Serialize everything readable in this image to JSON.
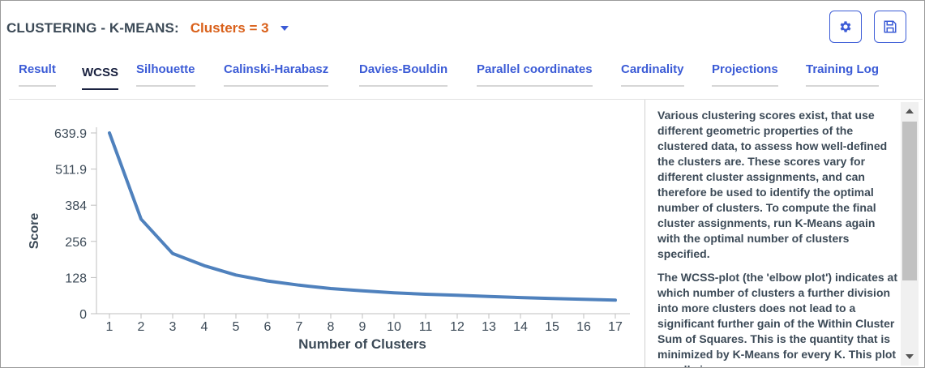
{
  "header": {
    "title": "CLUSTERING - K-MEANS:",
    "clusters_label": "Clusters = 3"
  },
  "toolbar": {
    "settings_icon": "gear-icon",
    "save_icon": "floppy-disk-icon"
  },
  "tabs": [
    {
      "label": "Result",
      "active": false
    },
    {
      "label": "WCSS",
      "active": true
    },
    {
      "label": "Silhouette",
      "active": false
    },
    {
      "label": "Calinski-Harabasz",
      "active": false
    },
    {
      "label": "Davies-Bouldin",
      "active": false
    },
    {
      "label": "Parallel coordinates",
      "active": false
    },
    {
      "label": "Cardinality",
      "active": false
    },
    {
      "label": "Projections",
      "active": false
    },
    {
      "label": "Training Log",
      "active": false
    }
  ],
  "description": {
    "paragraphs": [
      "Various clustering scores exist, that use different geometric properties of the clustered data, to assess how well-defined the clusters are. These scores vary for different cluster assignments, and can therefore be used to identify the optimal number of clusters. To compute the final cluster assignments, run K-Means again with the optimal number of clusters specified.",
      "The WCSS-plot (the 'elbow plot') indicates at which number of clusters a further division into more clusters does not lead to a significant further gain of the Within Cluster Sum of Squares. This is the quantity that is minimized by K-Means for every K. This plot usually is"
    ]
  },
  "colors": {
    "accent": "#3b5bd6",
    "cluster_orange": "#d9601a",
    "line": "#4f81bd",
    "text": "#3c4a57"
  },
  "chart_data": {
    "type": "line",
    "xlabel": "Number of Clusters",
    "ylabel": "Score",
    "x": [
      1,
      2,
      3,
      4,
      5,
      6,
      7,
      8,
      9,
      10,
      11,
      12,
      13,
      14,
      15,
      16,
      17
    ],
    "y_ticks": [
      "0",
      "128",
      "256",
      "384",
      "511.9",
      "639.9"
    ],
    "y_tick_values": [
      0,
      128,
      256,
      384,
      511.9,
      639.9
    ],
    "ylim": [
      0,
      639.9
    ],
    "series": [
      {
        "values": [
          639.9,
          335,
          213,
          170,
          137,
          116,
          101,
          89,
          81,
          74,
          69,
          65,
          61,
          57,
          54,
          51,
          48
        ]
      }
    ],
    "grid": false
  }
}
